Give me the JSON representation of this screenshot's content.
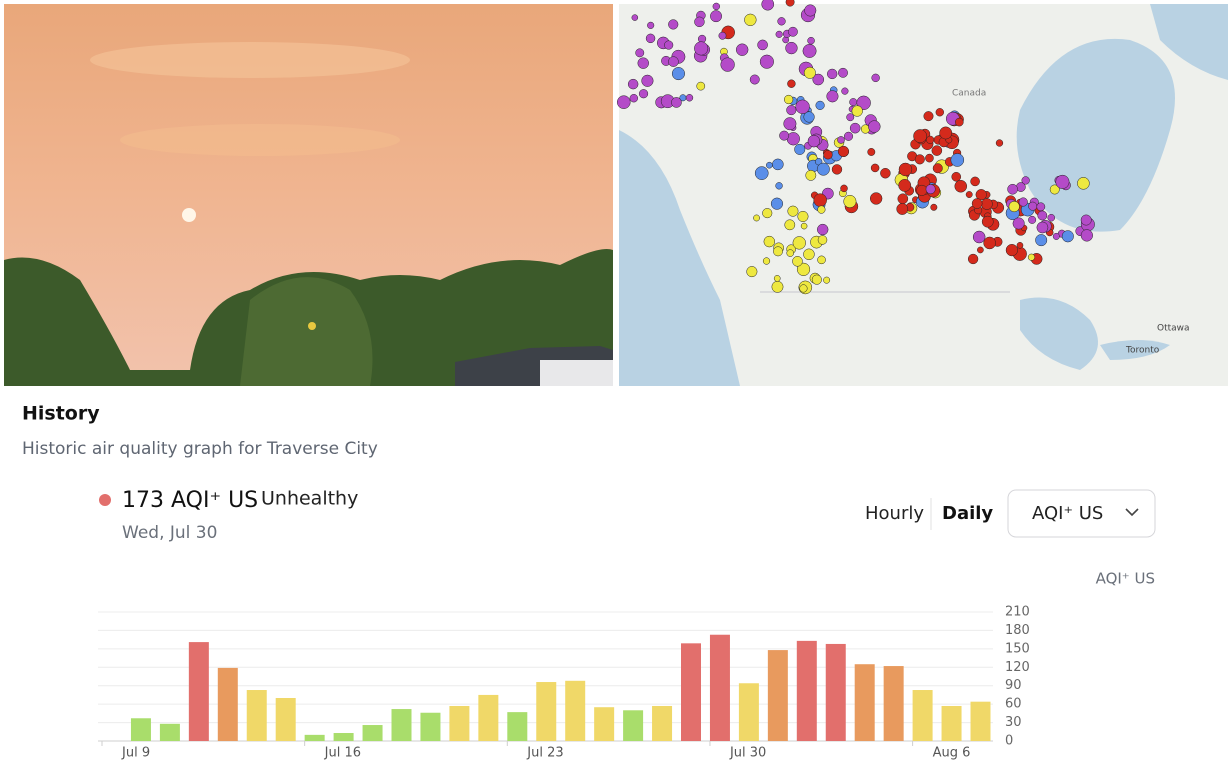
{
  "map": {
    "labels": [
      "Canada",
      "Ottawa",
      "Toronto"
    ]
  },
  "header": {
    "title": "History",
    "subtitle": "Historic air quality graph for Traverse City"
  },
  "current": {
    "value": "173",
    "unit": "AQI⁺ US",
    "status": "Unhealthy",
    "date": "Wed, Jul 30"
  },
  "controls": {
    "hourly": "Hourly",
    "daily": "Daily",
    "pollutant": "AQI⁺ US"
  },
  "chart_data": {
    "type": "bar",
    "y_label": "AQI⁺ US",
    "categories": [
      "Jul 9",
      null,
      null,
      null,
      null,
      null,
      null,
      "Jul 16",
      null,
      null,
      null,
      null,
      null,
      null,
      "Jul 23",
      null,
      null,
      null,
      null,
      null,
      null,
      "Jul 30",
      null,
      null,
      null,
      null,
      null,
      null,
      "Aug 6",
      null,
      null
    ],
    "values": [
      null,
      37,
      28,
      161,
      119,
      83,
      70,
      10,
      13,
      26,
      52,
      46,
      57,
      75,
      47,
      96,
      98,
      55,
      50,
      57,
      159,
      173,
      94,
      148,
      163,
      158,
      125,
      122,
      83,
      57,
      64
    ],
    "colors": [
      null,
      "#a9dd6b",
      "#a9dd6b",
      "#e26f6c",
      "#e89a5e",
      "#f0d868",
      "#f0d868",
      "#a9dd6b",
      "#a9dd6b",
      "#a9dd6b",
      "#a9dd6b",
      "#a9dd6b",
      "#f0d868",
      "#f0d868",
      "#a9dd6b",
      "#f0d868",
      "#f0d868",
      "#f0d868",
      "#a9dd6b",
      "#f0d868",
      "#e26f6c",
      "#e26f6c",
      "#f0d868",
      "#e89a5e",
      "#e26f6c",
      "#e26f6c",
      "#e89a5e",
      "#e89a5e",
      "#f0d868",
      "#f0d868",
      "#f0d868"
    ],
    "ylim": [
      0,
      210
    ],
    "yticks": [
      0,
      30,
      60,
      90,
      120,
      150,
      180,
      210
    ],
    "grid": true
  }
}
